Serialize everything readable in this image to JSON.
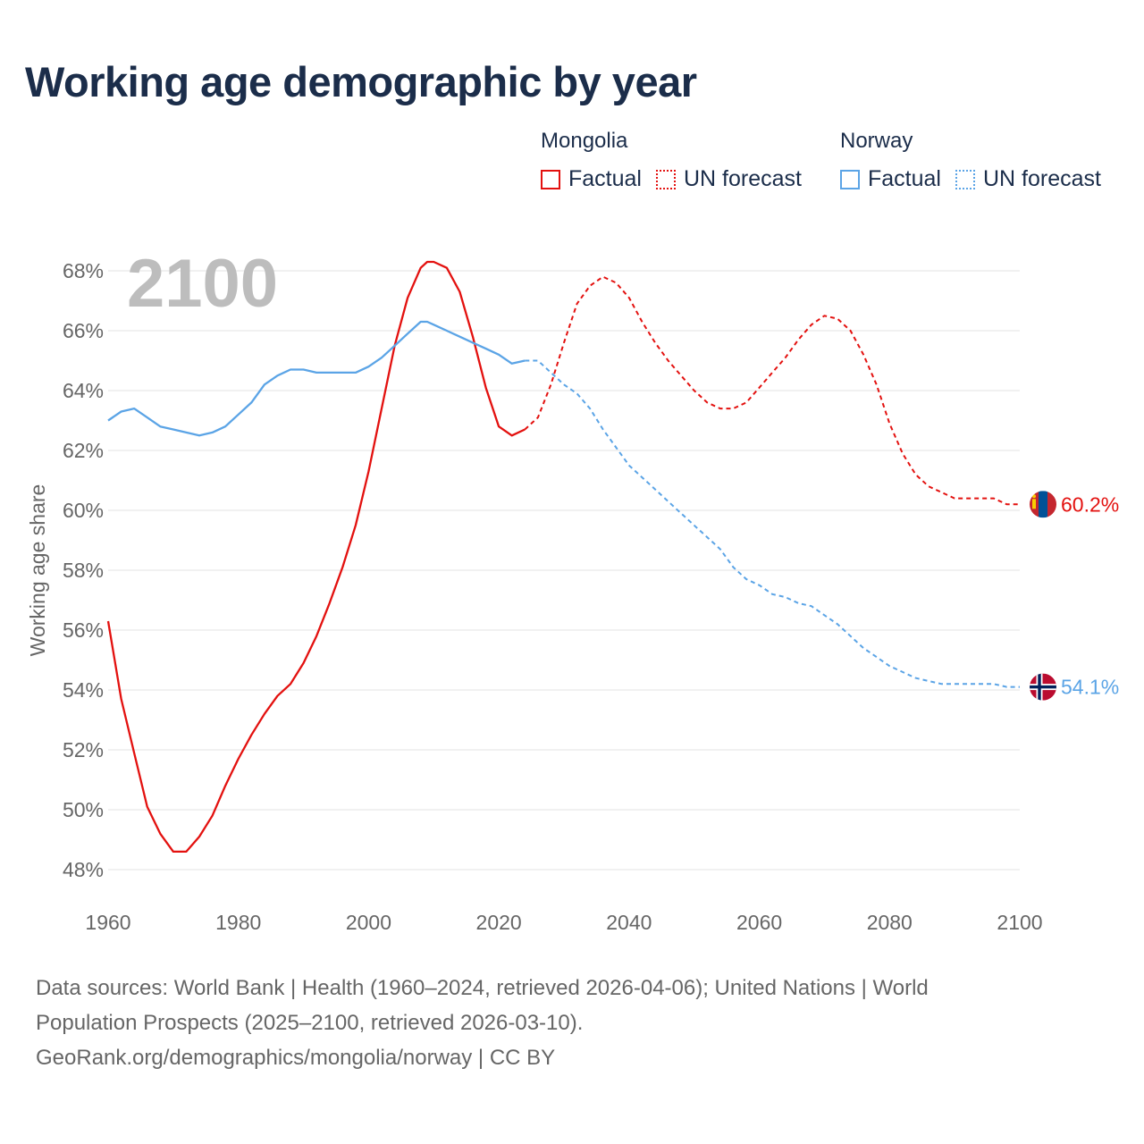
{
  "title": "Working age demographic by year",
  "legend": {
    "groups": [
      {
        "name": "Mongolia",
        "color": "#e3110f",
        "factual_label": "Factual",
        "forecast_label": "UN forecast"
      },
      {
        "name": "Norway",
        "color": "#5ba4e6",
        "factual_label": "Factual",
        "forecast_label": "UN forecast"
      }
    ]
  },
  "footer": {
    "line1": "Data sources: World Bank | Health (1960–2024, retrieved 2026-04-06); United Nations | World",
    "line2": "Population Prospects (2025–2100, retrieved 2026-03-10).",
    "line3": "GeoRank.org/demographics/mongolia/norway | CC BY"
  },
  "chart_data": {
    "type": "line",
    "title": "Working age demographic by year",
    "year_label": "2100",
    "ylabel": "Working age share",
    "xlabel": "",
    "xlim": [
      1960,
      2100
    ],
    "ylim": [
      48,
      68
    ],
    "x_ticks": [
      1960,
      1980,
      2000,
      2020,
      2040,
      2060,
      2080,
      2100
    ],
    "x_tick_labels": [
      "1960",
      "1980",
      "2000",
      "2020",
      "2040",
      "2060",
      "2080",
      "2100"
    ],
    "y_ticks": [
      48,
      50,
      52,
      54,
      56,
      58,
      60,
      62,
      64,
      66,
      68
    ],
    "y_tick_labels": [
      "48%",
      "50%",
      "52%",
      "54%",
      "56%",
      "58%",
      "60%",
      "62%",
      "64%",
      "66%",
      "68%"
    ],
    "grid": true,
    "series": [
      {
        "name": "Mongolia",
        "color": "#e3110f",
        "end_label": "60.2%",
        "factual_end_year": 2024,
        "points": [
          [
            1960,
            56.3
          ],
          [
            1962,
            53.7
          ],
          [
            1964,
            51.9
          ],
          [
            1966,
            50.1
          ],
          [
            1968,
            49.2
          ],
          [
            1970,
            48.6
          ],
          [
            1972,
            48.6
          ],
          [
            1974,
            49.1
          ],
          [
            1976,
            49.8
          ],
          [
            1978,
            50.8
          ],
          [
            1980,
            51.7
          ],
          [
            1982,
            52.5
          ],
          [
            1984,
            53.2
          ],
          [
            1986,
            53.8
          ],
          [
            1988,
            54.2
          ],
          [
            1990,
            54.9
          ],
          [
            1992,
            55.8
          ],
          [
            1994,
            56.9
          ],
          [
            1996,
            58.1
          ],
          [
            1998,
            59.5
          ],
          [
            2000,
            61.3
          ],
          [
            2002,
            63.4
          ],
          [
            2004,
            65.5
          ],
          [
            2006,
            67.1
          ],
          [
            2008,
            68.1
          ],
          [
            2009,
            68.3
          ],
          [
            2010,
            68.3
          ],
          [
            2012,
            68.1
          ],
          [
            2014,
            67.3
          ],
          [
            2016,
            65.8
          ],
          [
            2018,
            64.1
          ],
          [
            2020,
            62.8
          ],
          [
            2022,
            62.5
          ],
          [
            2024,
            62.7
          ],
          [
            2026,
            63.1
          ],
          [
            2028,
            64.2
          ],
          [
            2030,
            65.6
          ],
          [
            2032,
            66.9
          ],
          [
            2034,
            67.5
          ],
          [
            2036,
            67.8
          ],
          [
            2038,
            67.6
          ],
          [
            2040,
            67.1
          ],
          [
            2042,
            66.3
          ],
          [
            2044,
            65.6
          ],
          [
            2046,
            65.0
          ],
          [
            2048,
            64.5
          ],
          [
            2050,
            64.0
          ],
          [
            2052,
            63.6
          ],
          [
            2054,
            63.4
          ],
          [
            2056,
            63.4
          ],
          [
            2058,
            63.6
          ],
          [
            2060,
            64.1
          ],
          [
            2062,
            64.6
          ],
          [
            2064,
            65.1
          ],
          [
            2066,
            65.7
          ],
          [
            2068,
            66.2
          ],
          [
            2070,
            66.5
          ],
          [
            2072,
            66.4
          ],
          [
            2074,
            66.0
          ],
          [
            2076,
            65.2
          ],
          [
            2078,
            64.2
          ],
          [
            2080,
            62.9
          ],
          [
            2082,
            61.9
          ],
          [
            2084,
            61.2
          ],
          [
            2086,
            60.8
          ],
          [
            2088,
            60.6
          ],
          [
            2090,
            60.4
          ],
          [
            2092,
            60.4
          ],
          [
            2094,
            60.4
          ],
          [
            2096,
            60.4
          ],
          [
            2098,
            60.2
          ],
          [
            2100,
            60.2
          ]
        ]
      },
      {
        "name": "Norway",
        "color": "#5ba4e6",
        "end_label": "54.1%",
        "factual_end_year": 2024,
        "points": [
          [
            1960,
            63.0
          ],
          [
            1962,
            63.3
          ],
          [
            1964,
            63.4
          ],
          [
            1966,
            63.1
          ],
          [
            1968,
            62.8
          ],
          [
            1970,
            62.7
          ],
          [
            1972,
            62.6
          ],
          [
            1974,
            62.5
          ],
          [
            1976,
            62.6
          ],
          [
            1978,
            62.8
          ],
          [
            1980,
            63.2
          ],
          [
            1982,
            63.6
          ],
          [
            1984,
            64.2
          ],
          [
            1986,
            64.5
          ],
          [
            1988,
            64.7
          ],
          [
            1990,
            64.7
          ],
          [
            1992,
            64.6
          ],
          [
            1994,
            64.6
          ],
          [
            1996,
            64.6
          ],
          [
            1998,
            64.6
          ],
          [
            2000,
            64.8
          ],
          [
            2002,
            65.1
          ],
          [
            2004,
            65.5
          ],
          [
            2006,
            65.9
          ],
          [
            2008,
            66.3
          ],
          [
            2009,
            66.3
          ],
          [
            2010,
            66.2
          ],
          [
            2012,
            66.0
          ],
          [
            2014,
            65.8
          ],
          [
            2016,
            65.6
          ],
          [
            2018,
            65.4
          ],
          [
            2020,
            65.2
          ],
          [
            2022,
            64.9
          ],
          [
            2024,
            65.0
          ],
          [
            2026,
            65.0
          ],
          [
            2028,
            64.6
          ],
          [
            2030,
            64.2
          ],
          [
            2032,
            63.9
          ],
          [
            2034,
            63.4
          ],
          [
            2036,
            62.7
          ],
          [
            2038,
            62.1
          ],
          [
            2040,
            61.5
          ],
          [
            2042,
            61.1
          ],
          [
            2044,
            60.7
          ],
          [
            2046,
            60.3
          ],
          [
            2048,
            59.9
          ],
          [
            2050,
            59.5
          ],
          [
            2052,
            59.1
          ],
          [
            2054,
            58.7
          ],
          [
            2056,
            58.1
          ],
          [
            2058,
            57.7
          ],
          [
            2060,
            57.5
          ],
          [
            2062,
            57.2
          ],
          [
            2064,
            57.1
          ],
          [
            2066,
            56.9
          ],
          [
            2068,
            56.8
          ],
          [
            2070,
            56.5
          ],
          [
            2072,
            56.2
          ],
          [
            2074,
            55.8
          ],
          [
            2076,
            55.4
          ],
          [
            2078,
            55.1
          ],
          [
            2080,
            54.8
          ],
          [
            2082,
            54.6
          ],
          [
            2084,
            54.4
          ],
          [
            2086,
            54.3
          ],
          [
            2088,
            54.2
          ],
          [
            2090,
            54.2
          ],
          [
            2092,
            54.2
          ],
          [
            2094,
            54.2
          ],
          [
            2096,
            54.2
          ],
          [
            2098,
            54.1
          ],
          [
            2100,
            54.1
          ]
        ]
      }
    ]
  }
}
